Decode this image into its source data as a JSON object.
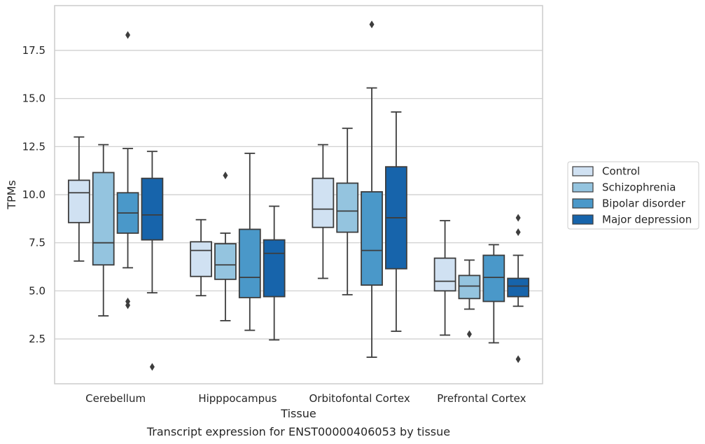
{
  "caption": "Transcript expression for ENST00000406053 by tissue",
  "chart_data": {
    "type": "boxplot",
    "xlabel": "Tissue",
    "ylabel": "TPMs",
    "ylim": [
      0.25,
      19.75
    ],
    "yticks": [
      2.5,
      5.0,
      7.5,
      10.0,
      12.5,
      15.0,
      17.5
    ],
    "ytick_labels": [
      "2.5",
      "5.0",
      "7.5",
      "10.0",
      "12.5",
      "15.0",
      "17.5"
    ],
    "grid": "horizontal",
    "legend_position": "right",
    "categories": [
      "Cerebellum",
      "Hipppocampus",
      "Orbitofontal Cortex",
      "Prefrontal Cortex"
    ],
    "series": [
      {
        "name": "Control",
        "color": "#d0e1f2",
        "boxes": [
          {
            "whislo": 6.55,
            "q1": 8.55,
            "med": 10.1,
            "q3": 10.75,
            "whishi": 13.0,
            "fliers": []
          },
          {
            "whislo": 4.75,
            "q1": 5.75,
            "med": 7.1,
            "q3": 7.55,
            "whishi": 8.7,
            "fliers": []
          },
          {
            "whislo": 5.65,
            "q1": 8.3,
            "med": 9.25,
            "q3": 10.85,
            "whishi": 12.6,
            "fliers": []
          },
          {
            "whislo": 2.7,
            "q1": 5.0,
            "med": 5.5,
            "q3": 6.7,
            "whishi": 8.65,
            "fliers": []
          }
        ]
      },
      {
        "name": "Schizophrenia",
        "color": "#94c4df",
        "boxes": [
          {
            "whislo": 3.7,
            "q1": 6.35,
            "med": 7.5,
            "q3": 11.15,
            "whishi": 12.6,
            "fliers": []
          },
          {
            "whislo": 3.45,
            "q1": 5.6,
            "med": 6.35,
            "q3": 7.45,
            "whishi": 8.0,
            "fliers": [
              11.0
            ]
          },
          {
            "whislo": 4.8,
            "q1": 8.05,
            "med": 9.15,
            "q3": 10.6,
            "whishi": 13.45,
            "fliers": []
          },
          {
            "whislo": 4.05,
            "q1": 4.6,
            "med": 5.25,
            "q3": 5.8,
            "whishi": 6.6,
            "fliers": [
              2.75
            ]
          }
        ]
      },
      {
        "name": "Bipolar disorder",
        "color": "#4a98c9",
        "boxes": [
          {
            "whislo": 6.2,
            "q1": 8.0,
            "med": 9.05,
            "q3": 10.1,
            "whishi": 12.4,
            "fliers": [
              18.3,
              4.45,
              4.25
            ]
          },
          {
            "whislo": 2.95,
            "q1": 4.65,
            "med": 5.7,
            "q3": 8.2,
            "whishi": 12.15,
            "fliers": []
          },
          {
            "whislo": 1.55,
            "q1": 5.3,
            "med": 7.1,
            "q3": 10.15,
            "whishi": 15.55,
            "fliers": [
              18.85
            ]
          },
          {
            "whislo": 2.3,
            "q1": 4.45,
            "med": 5.7,
            "q3": 6.85,
            "whishi": 7.4,
            "fliers": []
          }
        ]
      },
      {
        "name": "Major depression",
        "color": "#1764ab",
        "boxes": [
          {
            "whislo": 4.9,
            "q1": 7.65,
            "med": 8.95,
            "q3": 10.85,
            "whishi": 12.25,
            "fliers": [
              1.05
            ]
          },
          {
            "whislo": 2.45,
            "q1": 4.7,
            "med": 6.95,
            "q3": 7.65,
            "whishi": 9.4,
            "fliers": []
          },
          {
            "whislo": 2.9,
            "q1": 6.15,
            "med": 8.8,
            "q3": 11.45,
            "whishi": 14.3,
            "fliers": []
          },
          {
            "whislo": 4.2,
            "q1": 4.7,
            "med": 5.25,
            "q3": 5.65,
            "whishi": 6.85,
            "fliers": [
              8.8,
              8.05,
              1.45
            ]
          }
        ]
      }
    ]
  }
}
